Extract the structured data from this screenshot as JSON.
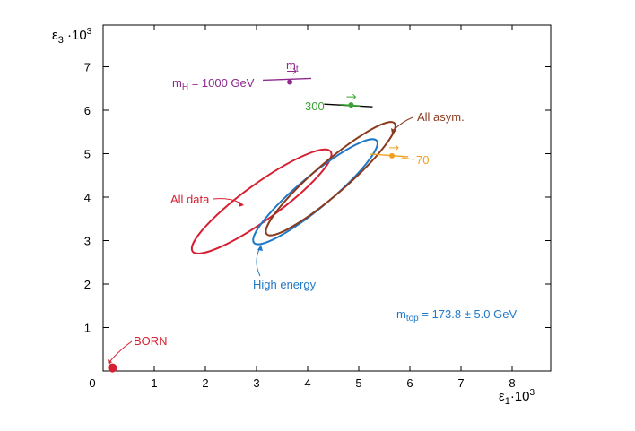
{
  "chart_data": {
    "type": "line",
    "title": "",
    "xlabel": {
      "base": "ε",
      "sub": "1",
      "mid": "·10",
      "sup": "3"
    },
    "ylabel": {
      "base": "ε",
      "sub": "3",
      "mid": " ·10",
      "sup": "3"
    },
    "xlim": [
      0,
      9
    ],
    "ylim": [
      0,
      7.8
    ],
    "xticks": [
      0,
      1,
      2,
      3,
      4,
      5,
      6,
      7,
      8
    ],
    "yticks": [
      1,
      2,
      3,
      4,
      5,
      6,
      7
    ],
    "ellipses": [
      {
        "name": "All data",
        "color": "#d62032",
        "cx": 3.7,
        "cy": 3.9,
        "rx_points": [
          [
            1.75,
            2.75
          ],
          [
            4.45,
            5.05
          ]
        ],
        "width": 0.7
      },
      {
        "name": "High energy",
        "color": "#1f78c8",
        "cx": 4.1,
        "cy": 4.15,
        "rx_points": [
          [
            2.95,
            2.95
          ],
          [
            5.35,
            5.3
          ]
        ],
        "width": 0.62
      },
      {
        "name": "All asym.",
        "color": "#8b3a1e",
        "cx": 4.45,
        "cy": 4.45,
        "rx_points": [
          [
            3.2,
            3.15
          ],
          [
            5.7,
            5.7
          ]
        ],
        "width": 0.62
      }
    ],
    "higgs_line": {
      "color": "#000000",
      "points": [
        {
          "label": "mH = 1000 GeV",
          "x": 3.65,
          "y": 6.65,
          "color": "#8e2a8e"
        },
        {
          "label": "300",
          "x": 4.85,
          "y": 6.12,
          "color": "#3aa335"
        },
        {
          "label": "70",
          "x": 5.65,
          "y": 4.95,
          "color": "#f0a020"
        }
      ]
    },
    "born_point": {
      "label": "BORN",
      "x": 0.2,
      "y": 0.05,
      "color": "#d62032"
    },
    "annotations": {
      "mt_arrow_label": "m",
      "mt_arrow_sub": "t",
      "mtop_text": {
        "pre": "m",
        "sub": "top",
        "post": " = 173.8 ± 5.0 GeV",
        "color": "#1f78c8"
      },
      "mh_label": {
        "pre": "m",
        "sub": "H",
        "post": " = 1000 GeV",
        "color": "#8e2a8e"
      },
      "all_data": {
        "text": "All data",
        "color": "#d62032"
      },
      "high_energy": {
        "text": "High energy",
        "color": "#1f78c8"
      },
      "all_asym": {
        "text": "All asym.",
        "color": "#8b3a1e"
      },
      "p300": {
        "text": "300",
        "color": "#3aa335"
      },
      "p70": {
        "text": "70",
        "color": "#f0a020"
      },
      "born": {
        "text": "BORN",
        "color": "#d62032"
      }
    }
  }
}
